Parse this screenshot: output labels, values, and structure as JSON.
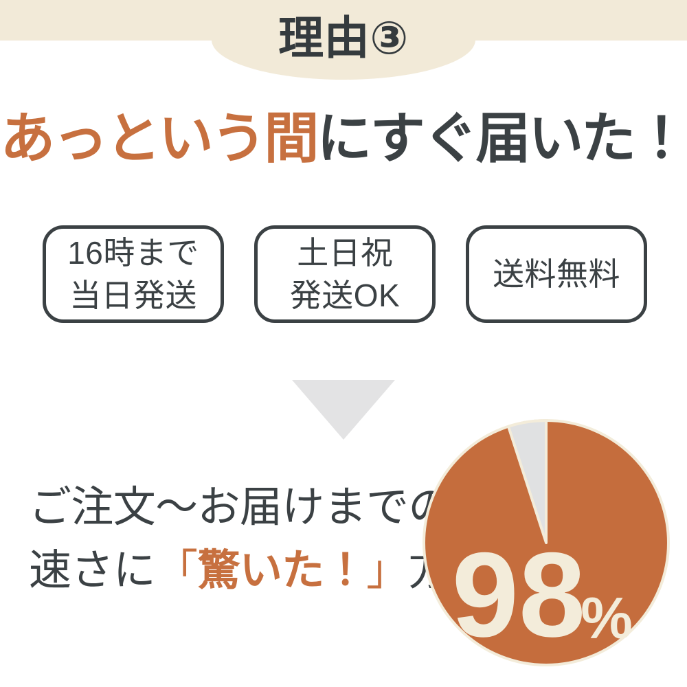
{
  "colors": {
    "cream_band": "#f2ead8",
    "dark_text": "#3b4144",
    "accent_orange": "#c7703f",
    "pie_orange": "#c56d3d",
    "pie_gap_gray": "#e0e1e2",
    "arrow_gray": "#e3e3e4",
    "pie_label_cream": "#f3ecda"
  },
  "header": {
    "title": "理由③"
  },
  "headline": {
    "highlight": "あっという間",
    "rest": "にすぐ届いた！"
  },
  "badges": {
    "items": [
      {
        "line1": "16時まで",
        "line2": "当日発送"
      },
      {
        "line1": "土日祝",
        "line2": "発送OK"
      },
      {
        "line1": "送料無料",
        "line2": ""
      }
    ]
  },
  "stat_text": {
    "line1": "ご注文〜お届けまでの",
    "line2_prefix": "速さに",
    "line2_open": "「",
    "line2_highlight": "驚いた！",
    "line2_close": "」",
    "line2_suffix": "方"
  },
  "chart_data": {
    "type": "pie",
    "title": "ご注文〜お届けまでの速さに「驚いた！」方",
    "slices": [
      {
        "value": 98,
        "color": "#c56d3d"
      },
      {
        "value": 2,
        "color": "#e0e1e2"
      }
    ],
    "center_label": "98",
    "unit": "%",
    "legend": "none",
    "gap_degrees": 18,
    "gap_start_clock": "12:00"
  }
}
